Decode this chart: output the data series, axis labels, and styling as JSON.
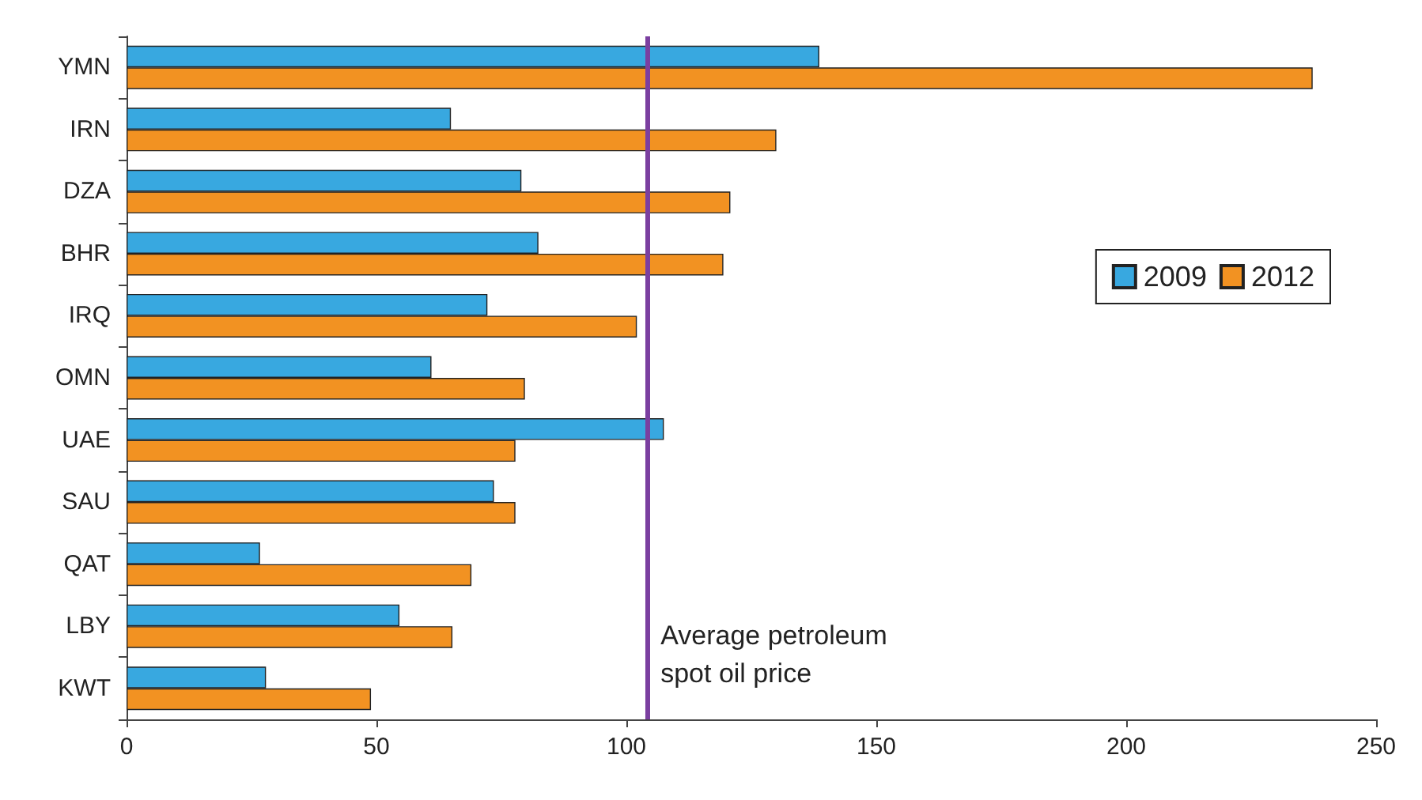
{
  "chart_data": {
    "type": "bar",
    "orientation": "horizontal",
    "categories": [
      "YMN",
      "IRN",
      "DZA",
      "BHR",
      "IRQ",
      "OMN",
      "UAE",
      "SAU",
      "QAT",
      "LBY",
      "KWT"
    ],
    "series": [
      {
        "name": "2009",
        "color": "#38a8e0",
        "values": [
          138.6,
          64.9,
          79,
          82.4,
          72.2,
          61,
          107.5,
          73.5,
          26.7,
          54.6,
          27.9
        ]
      },
      {
        "name": "2012",
        "color": "#f29222",
        "values": [
          237.3,
          130,
          120.8,
          119.4,
          102.1,
          79.7,
          77.8,
          77.8,
          69,
          65.2,
          48.9
        ]
      }
    ],
    "xlim": [
      0,
      250
    ],
    "xticks": [
      0,
      50,
      100,
      150,
      200,
      250
    ],
    "grid": false,
    "legend": "right",
    "ref_lines": [
      {
        "axis": "x",
        "value": 104.3,
        "label": "Average petroleum spot oil price",
        "color": "#7b3fa0"
      }
    ]
  }
}
